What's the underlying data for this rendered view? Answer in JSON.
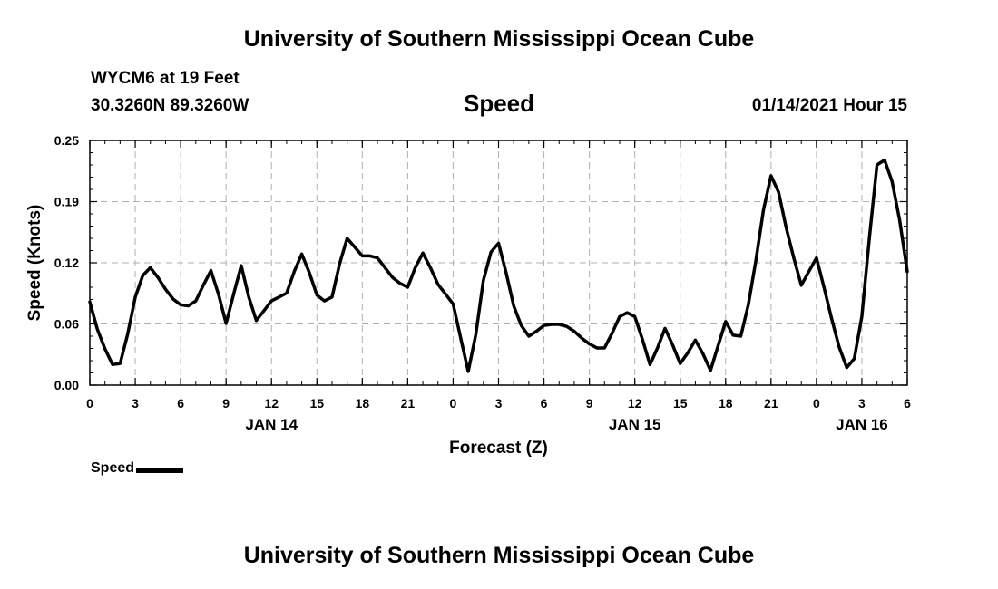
{
  "header": {
    "title": "University of Southern Mississippi Ocean Cube"
  },
  "footer": {
    "title": "University of Southern Mississippi Ocean Cube"
  },
  "station": {
    "name": "WYCM6 at 19 Feet",
    "coordinates": "30.3260N 89.3260W"
  },
  "run_label": "01/14/2021 Hour 15",
  "legend": {
    "label": "Speed"
  },
  "colors": {
    "line": "#000000",
    "grid": "#b0b0b0"
  },
  "chart_data": {
    "type": "line",
    "title": "Speed",
    "xlabel": "Forecast (Z)",
    "ylabel": "Speed (Knots)",
    "ylim": [
      0,
      0.25
    ],
    "yticks": [
      "0.00",
      "0.06",
      "0.12",
      "0.19",
      "0.25"
    ],
    "ytick_values": [
      0,
      0.0625,
      0.125,
      0.1875,
      0.25
    ],
    "xlim": [
      0,
      54
    ],
    "x_tick_positions": [
      0,
      3,
      6,
      9,
      12,
      15,
      18,
      21,
      24,
      27,
      30,
      33,
      36,
      39,
      42,
      45,
      48,
      51,
      54
    ],
    "x_tick_labels": [
      "0",
      "3",
      "6",
      "9",
      "12",
      "15",
      "18",
      "21",
      "0",
      "3",
      "6",
      "9",
      "12",
      "15",
      "18",
      "21",
      "0",
      "3",
      "6"
    ],
    "day_labels": [
      {
        "x": 12,
        "label": "JAN 14"
      },
      {
        "x": 36,
        "label": "JAN 15"
      },
      {
        "x": 51,
        "label": "JAN 16"
      }
    ],
    "grid": true,
    "series": [
      {
        "name": "Speed",
        "x": [
          0,
          0.5,
          1,
          1.5,
          2,
          2.5,
          3,
          3.5,
          4,
          4.5,
          5,
          5.5,
          6,
          6.5,
          7,
          7.5,
          8,
          8.5,
          9,
          9.5,
          10,
          10.5,
          11,
          11.5,
          12,
          12.5,
          13,
          13.5,
          14,
          14.5,
          15,
          15.5,
          16,
          16.5,
          17,
          17.5,
          18,
          18.5,
          19,
          19.5,
          20,
          20.5,
          21,
          21.5,
          22,
          22.5,
          23,
          23.5,
          24,
          24.5,
          25,
          25.5,
          26,
          26.5,
          27,
          27.5,
          28,
          28.5,
          29,
          29.5,
          30,
          30.5,
          31,
          31.5,
          32,
          32.5,
          33,
          33.5,
          34,
          34.5,
          35,
          35.5,
          36,
          36.5,
          37,
          37.5,
          38,
          38.5,
          39,
          39.5,
          40,
          40.5,
          41,
          41.5,
          42,
          42.5,
          43,
          43.5,
          44,
          44.5,
          45,
          45.5,
          46,
          46.5,
          47,
          47.5,
          48,
          48.5,
          49,
          49.5,
          50,
          50.5,
          51,
          51.5,
          52,
          52.5,
          53,
          53.5,
          54
        ],
        "values": [
          0.085,
          0.057,
          0.037,
          0.021,
          0.022,
          0.052,
          0.09,
          0.112,
          0.12,
          0.11,
          0.098,
          0.088,
          0.082,
          0.081,
          0.086,
          0.102,
          0.117,
          0.093,
          0.063,
          0.093,
          0.122,
          0.09,
          0.066,
          0.076,
          0.086,
          0.09,
          0.094,
          0.116,
          0.134,
          0.115,
          0.092,
          0.086,
          0.09,
          0.124,
          0.15,
          0.141,
          0.132,
          0.132,
          0.13,
          0.12,
          0.11,
          0.104,
          0.1,
          0.12,
          0.135,
          0.12,
          0.103,
          0.093,
          0.083,
          0.048,
          0.014,
          0.052,
          0.107,
          0.136,
          0.145,
          0.115,
          0.081,
          0.061,
          0.05,
          0.055,
          0.061,
          0.062,
          0.062,
          0.06,
          0.055,
          0.048,
          0.042,
          0.038,
          0.038,
          0.053,
          0.07,
          0.074,
          0.07,
          0.047,
          0.021,
          0.038,
          0.058,
          0.041,
          0.022,
          0.033,
          0.046,
          0.032,
          0.015,
          0.04,
          0.065,
          0.051,
          0.05,
          0.082,
          0.127,
          0.179,
          0.214,
          0.197,
          0.161,
          0.13,
          0.102,
          0.116,
          0.13,
          0.1,
          0.068,
          0.039,
          0.018,
          0.027,
          0.07,
          0.151,
          0.225,
          0.23,
          0.208,
          0.168,
          0.116
        ]
      }
    ]
  }
}
